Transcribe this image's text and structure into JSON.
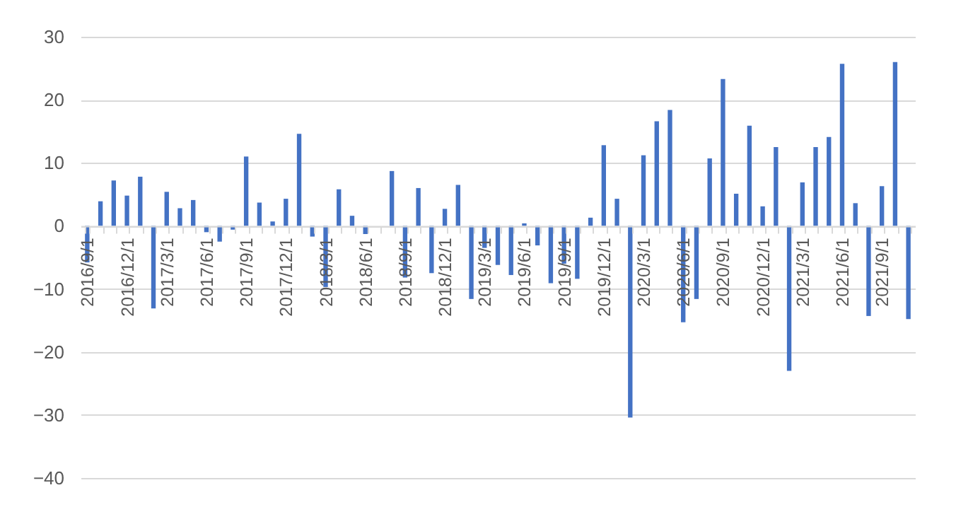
{
  "chart_data": {
    "type": "bar",
    "categories": [
      "2016/9/1",
      null,
      null,
      "2016/12/1",
      null,
      null,
      "2017/3/1",
      null,
      null,
      "2017/6/1",
      null,
      null,
      "2017/9/1",
      null,
      null,
      "2017/12/1",
      null,
      null,
      "2018/3/1",
      null,
      null,
      "2018/6/1",
      null,
      null,
      "2018/9/1",
      null,
      null,
      "2018/12/1",
      null,
      null,
      "2019/3/1",
      null,
      null,
      "2019/6/1",
      null,
      null,
      "2019/9/1",
      null,
      null,
      "2019/12/1",
      null,
      null,
      "2020/3/1",
      null,
      null,
      "2020/6/1",
      null,
      null,
      "2020/9/1",
      null,
      null,
      "2020/12/1",
      null,
      null,
      "2021/3/1",
      null,
      null,
      "2021/6/1",
      null,
      null,
      "2021/9/1",
      null,
      null
    ],
    "values": [
      -5.8,
      3.9,
      7.2,
      4.8,
      7.8,
      -13.1,
      5.4,
      2.8,
      4.1,
      -1.0,
      -2.5,
      -0.6,
      11.0,
      3.7,
      0.7,
      4.3,
      14.6,
      -1.7,
      -9.7,
      5.8,
      1.6,
      -1.3,
      0,
      8.7,
      -8.2,
      6.0,
      -7.5,
      2.7,
      6.5,
      -11.6,
      -3.5,
      -6.2,
      -7.8,
      0.4,
      -3.1,
      -9.1,
      -6.0,
      -8.4,
      1.3,
      12.8,
      4.3,
      -30.4,
      11.2,
      16.6,
      18.4,
      -15.3,
      -11.6,
      10.7,
      23.3,
      5.1,
      15.9,
      3.1,
      12.5,
      -23.0,
      6.9,
      12.5,
      14.1,
      25.7,
      3.6,
      -14.3,
      6.3,
      26.0,
      -14.8
    ],
    "color": "#4472c4",
    "ylim": [
      -40,
      30
    ],
    "yticks": [
      -40,
      -30,
      -20,
      -10,
      0,
      10,
      20,
      30
    ],
    "grid": "y"
  }
}
